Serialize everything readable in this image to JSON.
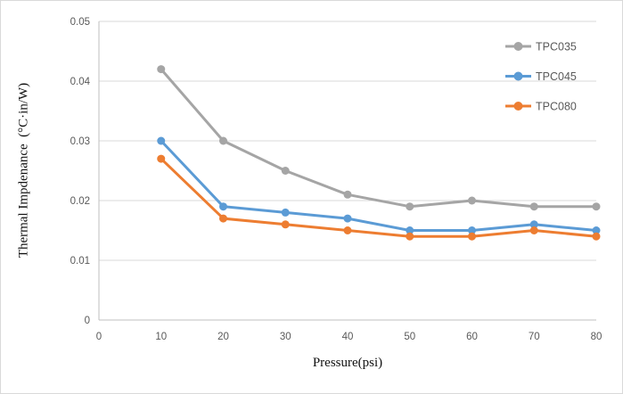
{
  "chart_data": {
    "type": "line",
    "title": "",
    "xlabel": "Pressure(psi)",
    "ylabel": "Thermal Impdenance  (°C·in/W)",
    "x": [
      10,
      20,
      30,
      40,
      50,
      60,
      70,
      80
    ],
    "xlim": [
      0,
      80
    ],
    "ylim": [
      0,
      0.05
    ],
    "xticks": {
      "values": [
        0,
        10,
        20,
        30,
        40,
        50,
        60,
        70,
        80
      ],
      "labels": [
        "0",
        "10",
        "20",
        "30",
        "40",
        "50",
        "60",
        "70",
        "80"
      ]
    },
    "yticks": {
      "values": [
        0,
        0.01,
        0.02,
        0.03,
        0.04,
        0.05
      ],
      "labels": [
        "0",
        "0.01",
        "0.02",
        "0.03",
        "0.04",
        "0.05"
      ]
    },
    "grid": "horizontal",
    "legend_position": "top-right",
    "series": [
      {
        "name": "TPC035",
        "color": "#a5a5a5",
        "values": [
          0.042,
          0.03,
          0.025,
          0.021,
          0.019,
          0.02,
          0.019,
          0.019
        ]
      },
      {
        "name": "TPC045",
        "color": "#5b9bd5",
        "values": [
          0.03,
          0.019,
          0.018,
          0.017,
          0.015,
          0.015,
          0.016,
          0.015
        ]
      },
      {
        "name": "TPC080",
        "color": "#ed7d31",
        "values": [
          0.027,
          0.017,
          0.016,
          0.015,
          0.014,
          0.014,
          0.015,
          0.014
        ]
      }
    ],
    "colors": {
      "gridline": "#d9d9d9",
      "axis_line": "#bfbfbf",
      "tick_text": "#595959",
      "legend_text": "#595959",
      "figure_border": "#d9d9d9",
      "background": "#ffffff"
    }
  }
}
